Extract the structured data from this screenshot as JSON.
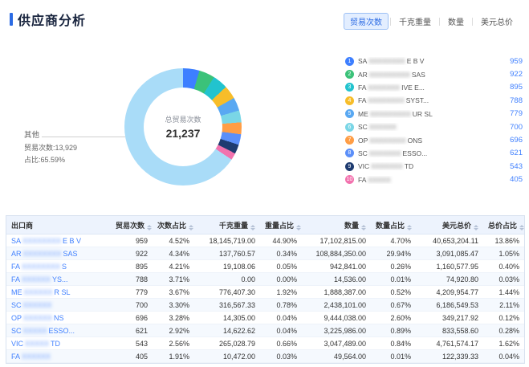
{
  "page": {
    "title": "供应商分析"
  },
  "tabs": [
    {
      "label": "贸易次数",
      "active": true
    },
    {
      "label": "千克重量",
      "active": false
    },
    {
      "label": "数量",
      "active": false
    },
    {
      "label": "美元总价",
      "active": false
    }
  ],
  "chart": {
    "center_label": "总贸易次数",
    "center_value": "21,237",
    "callout_title": "其他",
    "callout_line1": "贸易次数:13,929",
    "callout_line2": "占比:65.59%"
  },
  "chart_data": {
    "type": "pie",
    "title": "总贸易次数",
    "total": 21237,
    "unit": "贸易次数",
    "legend_position": "right",
    "series": [
      {
        "name": "SA*** E B V",
        "value": 959,
        "pct": 4.52,
        "color": "#3D7FFF"
      },
      {
        "name": "AR*** SAS",
        "value": 922,
        "pct": 4.34,
        "color": "#3BC279"
      },
      {
        "name": "FA***IVE E...",
        "value": 895,
        "pct": 4.21,
        "color": "#22C3CE"
      },
      {
        "name": "FA***SYST...",
        "value": 788,
        "pct": 3.71,
        "color": "#F7BD29"
      },
      {
        "name": "ME***UR SL",
        "value": 779,
        "pct": 3.67,
        "color": "#59A8F2"
      },
      {
        "name": "SC***",
        "value": 700,
        "pct": 3.3,
        "color": "#7AD6E6"
      },
      {
        "name": "OP***ONS",
        "value": 696,
        "pct": 3.28,
        "color": "#FF9D45"
      },
      {
        "name": "SC***ESSO...",
        "value": 621,
        "pct": 2.92,
        "color": "#5B8FF9"
      },
      {
        "name": "VIC***TD",
        "value": 543,
        "pct": 2.56,
        "color": "#1E3B70"
      },
      {
        "name": "FA***",
        "value": 405,
        "pct": 1.91,
        "color": "#F272AE"
      },
      {
        "name": "其他",
        "value": 13929,
        "pct": 65.59,
        "color": "#A9DCF8"
      }
    ]
  },
  "legend": [
    {
      "num": "1",
      "prefix": "SA",
      "redacted": "XXXXXXXX",
      "suffix": "E B V",
      "value": "959",
      "color": "#3D7FFF"
    },
    {
      "num": "2",
      "prefix": "AR",
      "redacted": "XXXXXXXXX",
      "suffix": "SAS",
      "value": "922",
      "color": "#3BC279"
    },
    {
      "num": "3",
      "prefix": "FA",
      "redacted": "XXXXXXX",
      "suffix": "IVE E...",
      "value": "895",
      "color": "#22C3CE"
    },
    {
      "num": "4",
      "prefix": "FA",
      "redacted": "XXXXXXXX",
      "suffix": "SYST...",
      "value": "788",
      "color": "#F7BD29"
    },
    {
      "num": "5",
      "prefix": "ME",
      "redacted": "XXXXXXXXX",
      "suffix": "UR SL",
      "value": "779",
      "color": "#59A8F2"
    },
    {
      "num": "6",
      "prefix": "SC",
      "redacted": "XXXXXX",
      "suffix": "",
      "value": "700",
      "color": "#7AD6E6"
    },
    {
      "num": "7",
      "prefix": "OP",
      "redacted": "XXXXXXXX",
      "suffix": "ONS",
      "value": "696",
      "color": "#FF9D45"
    },
    {
      "num": "8",
      "prefix": "SC",
      "redacted": "XXXXXXX",
      "suffix": "ESSO...",
      "value": "621",
      "color": "#5B8FF9"
    },
    {
      "num": "9",
      "prefix": "VIC",
      "redacted": "XXXXXXX",
      "suffix": "TD",
      "value": "543",
      "color": "#1E3B70"
    },
    {
      "num": "10",
      "prefix": "FA",
      "redacted": "XXXXX",
      "suffix": "",
      "value": "405",
      "color": "#F272AE"
    }
  ],
  "table": {
    "headers": [
      "出口商",
      "贸易次数",
      "次数占比",
      "千克重量",
      "重量占比",
      "数量",
      "数量占比",
      "美元总价",
      "总价占比"
    ],
    "rows": [
      {
        "prefix": "SA",
        "redacted": "XXXXXXXX",
        "suffix": "E B V",
        "values": [
          "959",
          "4.52%",
          "18,145,719.00",
          "44.90%",
          "17,102,815.00",
          "4.70%",
          "40,653,204.11",
          "13.86%"
        ]
      },
      {
        "prefix": "AR",
        "redacted": "XXXXXXXX",
        "suffix": "SAS",
        "values": [
          "922",
          "4.34%",
          "137,760.57",
          "0.34%",
          "108,884,350.00",
          "29.94%",
          "3,091,085.47",
          "1.05%"
        ]
      },
      {
        "prefix": "FA",
        "redacted": "XXXXXXXX",
        "suffix": "S",
        "values": [
          "895",
          "4.21%",
          "19,108.06",
          "0.05%",
          "942,841.00",
          "0.26%",
          "1,160,577.95",
          "0.40%"
        ]
      },
      {
        "prefix": "FA",
        "redacted": "XXXXXX",
        "suffix": "YS...",
        "values": [
          "788",
          "3.71%",
          "0.00",
          "0.00%",
          "14,536.00",
          "0.01%",
          "74,920.80",
          "0.03%"
        ]
      },
      {
        "prefix": "ME",
        "redacted": "XXXXXX",
        "suffix": "R SL",
        "values": [
          "779",
          "3.67%",
          "776,407.30",
          "1.92%",
          "1,888,387.00",
          "0.52%",
          "4,209,954.77",
          "1.44%"
        ]
      },
      {
        "prefix": "SC",
        "redacted": "XXXXXX",
        "suffix": "",
        "values": [
          "700",
          "3.30%",
          "316,567.33",
          "0.78%",
          "2,438,101.00",
          "0.67%",
          "6,186,549.53",
          "2.11%"
        ]
      },
      {
        "prefix": "OP",
        "redacted": "XXXXXX",
        "suffix": "NS",
        "values": [
          "696",
          "3.28%",
          "14,305.00",
          "0.04%",
          "9,444,038.00",
          "2.60%",
          "349,217.92",
          "0.12%"
        ]
      },
      {
        "prefix": "SC",
        "redacted": "XXXXX",
        "suffix": "ESSO...",
        "values": [
          "621",
          "2.92%",
          "14,622.62",
          "0.04%",
          "3,225,986.00",
          "0.89%",
          "833,558.60",
          "0.28%"
        ]
      },
      {
        "prefix": "VIC",
        "redacted": "XXXXX",
        "suffix": "TD",
        "values": [
          "543",
          "2.56%",
          "265,028.79",
          "0.66%",
          "3,047,489.00",
          "0.84%",
          "4,761,574.17",
          "1.62%"
        ]
      },
      {
        "prefix": "FA",
        "redacted": "XXXXXX",
        "suffix": "",
        "values": [
          "405",
          "1.91%",
          "10,472.00",
          "0.03%",
          "49,564.00",
          "0.01%",
          "122,339.33",
          "0.04%"
        ]
      }
    ]
  }
}
